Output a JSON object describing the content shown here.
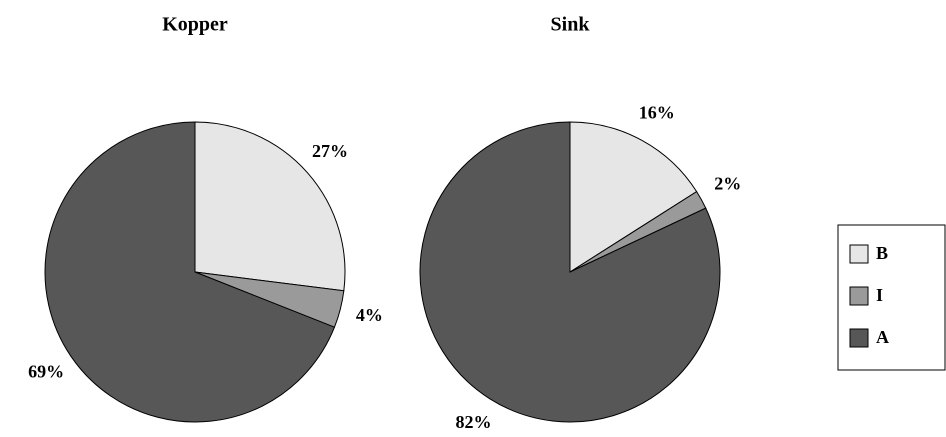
{
  "chart_data": [
    {
      "type": "pie",
      "title": "Kopper",
      "categories": [
        "B",
        "I",
        "A"
      ],
      "values": [
        27,
        4,
        69
      ],
      "value_labels": [
        "27%",
        "4%",
        "69%"
      ],
      "colors": [
        "#e6e6e6",
        "#9a9a9a",
        "#575757"
      ]
    },
    {
      "type": "pie",
      "title": "Sink",
      "categories": [
        "B",
        "I",
        "A"
      ],
      "values": [
        16,
        2,
        82
      ],
      "value_labels": [
        "16%",
        "2%",
        "82%"
      ],
      "colors": [
        "#e6e6e6",
        "#9a9a9a",
        "#575757"
      ]
    }
  ]
}
